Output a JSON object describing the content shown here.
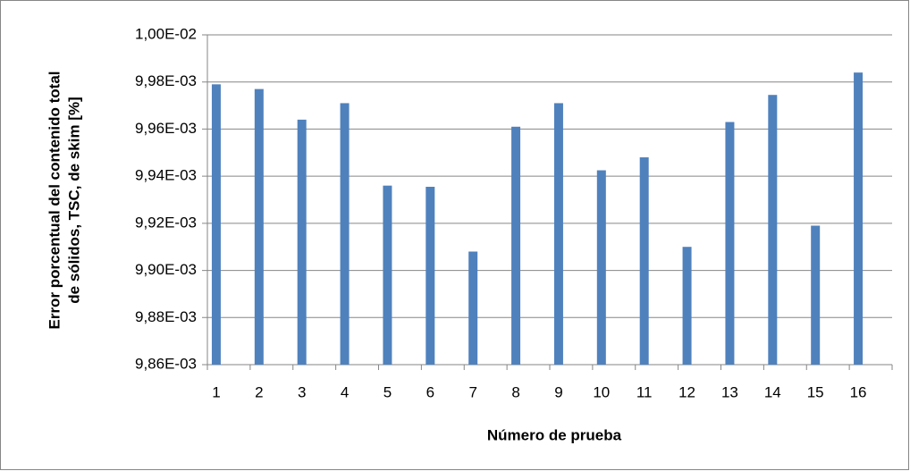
{
  "chart_data": {
    "type": "bar",
    "x_label": "Número de prueba",
    "y_label": [
      "Error porcentual del contenido total",
      "de sólidos, TSC, de skim [%]"
    ],
    "categories": [
      "1",
      "2",
      "3",
      "4",
      "5",
      "6",
      "7",
      "8",
      "9",
      "10",
      "11",
      "12",
      "13",
      "14",
      "15",
      "16"
    ],
    "values": [
      0.009979,
      0.009977,
      0.009964,
      0.009971,
      0.009936,
      0.0099355,
      0.009908,
      0.009961,
      0.009971,
      0.0099425,
      0.009948,
      0.00991,
      0.009963,
      0.0099745,
      0.009919,
      0.009984
    ],
    "color": "#4f81bd",
    "ylim": [
      0.00986,
      0.01
    ],
    "yticks": [
      {
        "value": 0.00986,
        "label": "9,86E-03"
      },
      {
        "value": 0.00988,
        "label": "9,88E-03"
      },
      {
        "value": 0.0099,
        "label": "9,90E-03"
      },
      {
        "value": 0.00992,
        "label": "9,92E-03"
      },
      {
        "value": 0.00994,
        "label": "9,94E-03"
      },
      {
        "value": 0.00996,
        "label": "9,96E-03"
      },
      {
        "value": 0.00998,
        "label": "9,98E-03"
      },
      {
        "value": 0.01,
        "label": "1,00E-02"
      }
    ],
    "grid": true
  }
}
